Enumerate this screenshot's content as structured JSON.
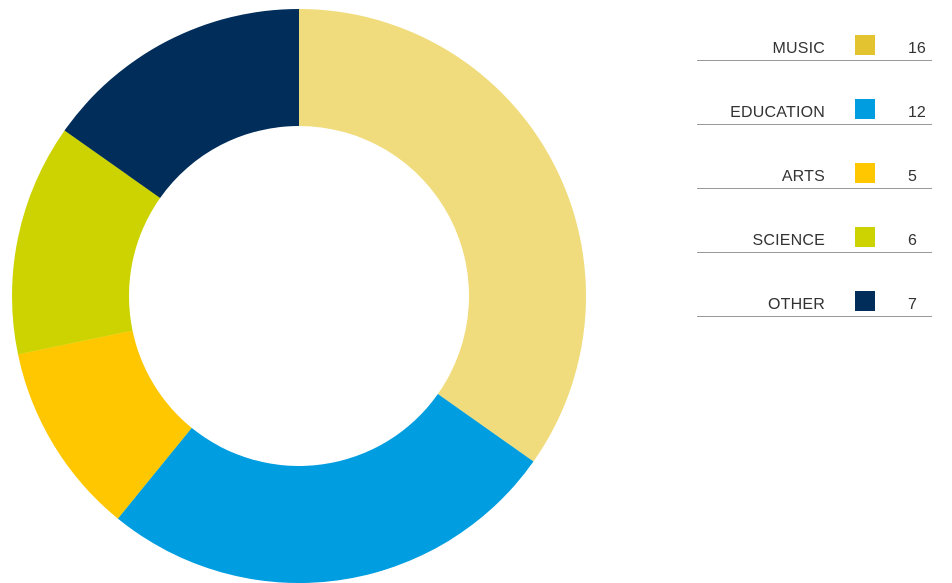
{
  "chart_data": {
    "type": "pie",
    "variant": "donut",
    "categories": [
      "MUSIC",
      "EDUCATION",
      "ARTS",
      "SCIENCE",
      "OTHER"
    ],
    "values": [
      16,
      12,
      5,
      6,
      7
    ],
    "legend": [
      {
        "label": "MUSIC",
        "value": "16",
        "color": "#e3c32f"
      },
      {
        "label": "EDUCATION",
        "value": "12",
        "color": "#009ee0"
      },
      {
        "label": "ARTS",
        "value": "5",
        "color": "#fec700"
      },
      {
        "label": "SCIENCE",
        "value": "6",
        "color": "#ccd300"
      },
      {
        "label": "OTHER",
        "value": "7",
        "color": "#002d59"
      }
    ],
    "slice_colors": [
      "#f0dc7c",
      "#009ee0",
      "#fec700",
      "#ccd300",
      "#002d59"
    ],
    "start_angle": "top",
    "direction": "clockwise",
    "legend_position": "right"
  }
}
